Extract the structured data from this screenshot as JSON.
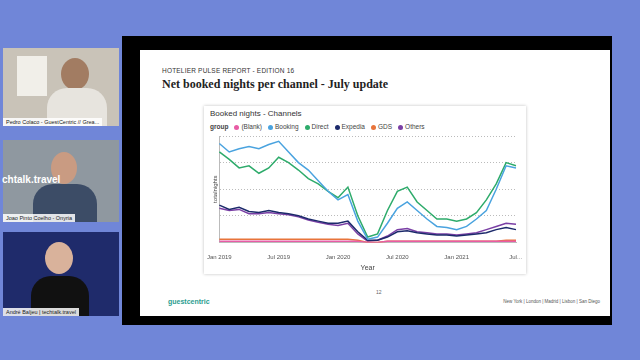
{
  "chart_data": {
    "type": "line",
    "title": "Booked nights - Channels",
    "legend_title": "group",
    "legend": "top",
    "x_label": "Year",
    "y_label": "totalnights",
    "categories": [
      "Jan 2019",
      null,
      null,
      null,
      null,
      null,
      "Jul 2019",
      null,
      null,
      null,
      null,
      null,
      "Jan 2020",
      null,
      null,
      null,
      null,
      null,
      "Jul 2020",
      null,
      null,
      null,
      null,
      null,
      "Jan 2021",
      null,
      null,
      null,
      null,
      null,
      "Jul…"
    ],
    "series": [
      {
        "name": "(Blank)",
        "color": "#e85ca5",
        "values": [
          1,
          1,
          1,
          1,
          1,
          1,
          1,
          1,
          1,
          1,
          1,
          1,
          1,
          1,
          1,
          0,
          0,
          1,
          1,
          1,
          1,
          1,
          1,
          1,
          1,
          1,
          1,
          1,
          1,
          1,
          1
        ]
      },
      {
        "name": "Booking",
        "color": "#4aa3df",
        "values": [
          93,
          85,
          88,
          90,
          88,
          92,
          95,
          85,
          75,
          68,
          58,
          48,
          40,
          45,
          20,
          3,
          5,
          18,
          32,
          38,
          30,
          22,
          15,
          14,
          12,
          15,
          22,
          30,
          50,
          72,
          70
        ]
      },
      {
        "name": "Direct",
        "color": "#2eab6b",
        "values": [
          85,
          78,
          70,
          72,
          65,
          70,
          80,
          75,
          68,
          60,
          55,
          48,
          42,
          52,
          25,
          5,
          8,
          30,
          48,
          52,
          38,
          30,
          22,
          22,
          20,
          22,
          28,
          40,
          55,
          75,
          72
        ]
      },
      {
        "name": "Expedia",
        "color": "#1c2a6b",
        "values": [
          35,
          31,
          33,
          29,
          28,
          30,
          28,
          27,
          25,
          22,
          20,
          18,
          18,
          20,
          10,
          2,
          2,
          5,
          10,
          11,
          9,
          8,
          7,
          7,
          6,
          7,
          8,
          9,
          12,
          14,
          12
        ]
      },
      {
        "name": "GDS",
        "color": "#e8743b",
        "values": [
          3,
          3,
          3,
          3,
          3,
          3,
          3,
          3,
          3,
          3,
          3,
          3,
          3,
          3,
          2,
          0,
          0,
          1,
          1,
          1,
          1,
          1,
          1,
          1,
          1,
          1,
          1,
          1,
          1,
          2,
          2
        ]
      },
      {
        "name": "Others",
        "color": "#7a3fa5",
        "values": [
          32,
          30,
          31,
          27,
          27,
          28,
          27,
          26,
          24,
          21,
          19,
          17,
          16,
          18,
          8,
          1,
          2,
          6,
          12,
          13,
          10,
          9,
          8,
          8,
          7,
          8,
          9,
          12,
          15,
          18,
          17
        ]
      }
    ],
    "ylim": [
      0,
      100
    ],
    "yticks": [
      0,
      25,
      50,
      75,
      100
    ],
    "grid": true,
    "tick_labels": "x"
  },
  "slide": {
    "kicker": "HOTELIER PULSE REPORT - EDITION 16",
    "title": "Net booked nights per channel - July update",
    "page": "12",
    "brand": "guestcentric",
    "offices": "New York | London | Madrid | Lisbon | San Diego"
  },
  "participants": [
    "Pedro Colaco - GuestCentric // Grea...",
    "Joao Pinto Coelho - Onyria",
    "André Baljeu | techtalk.travel"
  ],
  "side_text": "chtalk.travel"
}
